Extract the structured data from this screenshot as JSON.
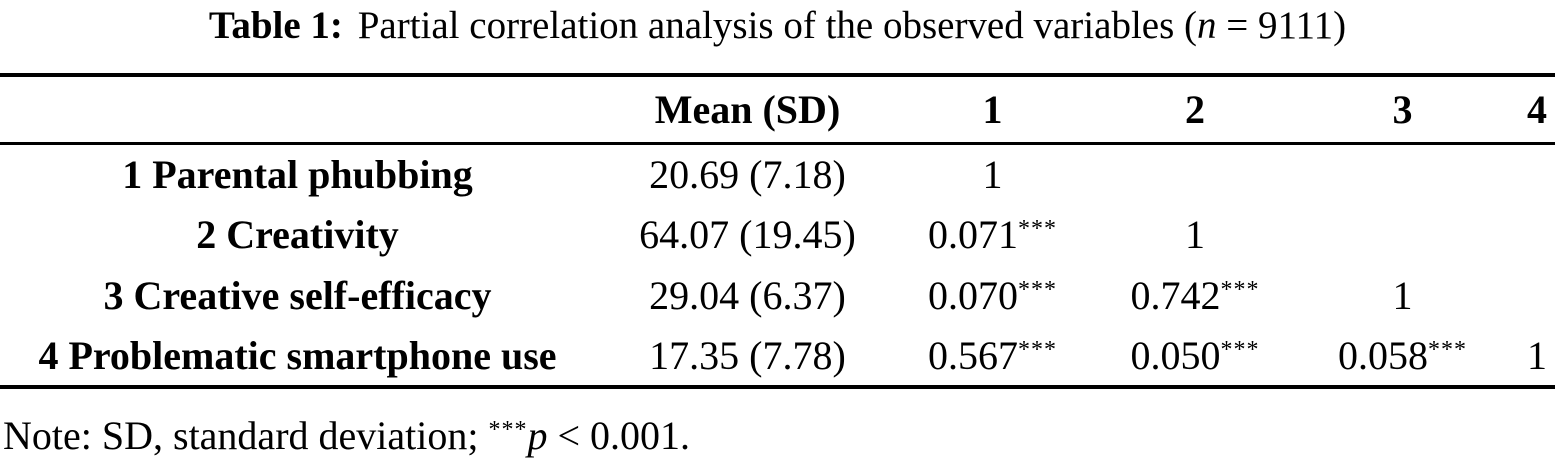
{
  "caption": {
    "label": "Table 1:",
    "before_n": "Partial correlation analysis of the observed variables (",
    "n_symbol": "n",
    "after_n": " = 9111)"
  },
  "table": {
    "headers": {
      "variable": "",
      "mean_sd": "Mean (SD)",
      "c1": "1",
      "c2": "2",
      "c3": "3",
      "c4": "4"
    },
    "rows": [
      {
        "label": "1 Parental phubbing",
        "mean_sd": "20.69 (7.18)",
        "c1": {
          "v": "1",
          "sup": ""
        },
        "c2": {
          "v": "",
          "sup": ""
        },
        "c3": {
          "v": "",
          "sup": ""
        },
        "c4": {
          "v": "",
          "sup": ""
        }
      },
      {
        "label": "2 Creativity",
        "mean_sd": "64.07 (19.45)",
        "c1": {
          "v": "0.071",
          "sup": "***"
        },
        "c2": {
          "v": "1",
          "sup": ""
        },
        "c3": {
          "v": "",
          "sup": ""
        },
        "c4": {
          "v": "",
          "sup": ""
        }
      },
      {
        "label": "3 Creative self-efficacy",
        "mean_sd": "29.04 (6.37)",
        "c1": {
          "v": "0.070",
          "sup": "***"
        },
        "c2": {
          "v": "0.742",
          "sup": "***"
        },
        "c3": {
          "v": "1",
          "sup": ""
        },
        "c4": {
          "v": "",
          "sup": ""
        }
      },
      {
        "label": "4 Problematic smartphone use",
        "mean_sd": "17.35 (7.78)",
        "c1": {
          "v": "0.567",
          "sup": "***"
        },
        "c2": {
          "v": "0.050",
          "sup": "***"
        },
        "c3": {
          "v": "0.058",
          "sup": "***"
        },
        "c4": {
          "v": "1",
          "sup": ""
        }
      }
    ]
  },
  "note": {
    "prefix": "Note: SD, standard deviation; ",
    "stars": "***",
    "p_symbol": "p",
    "suffix": " < 0.001."
  }
}
